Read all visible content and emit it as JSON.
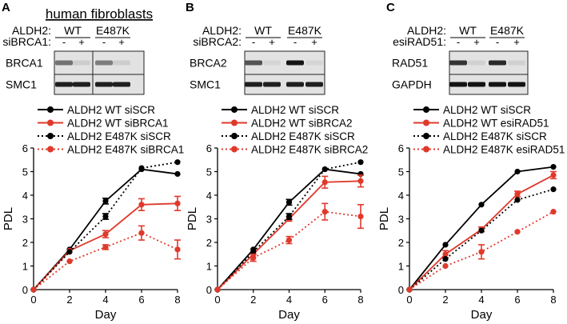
{
  "panels": [
    {
      "letter": "A",
      "header": "human fibroblasts",
      "genotype_label": "ALDH2:",
      "genotypes": [
        "WT",
        "E487K"
      ],
      "treatment_label": "siBRCA1:",
      "lanes": [
        "-",
        "+",
        "-",
        "+"
      ],
      "blots": [
        {
          "label": "BRCA1",
          "intensities": [
            0.55,
            0.12,
            0.5,
            0.12
          ],
          "split_after_lane": 2
        },
        {
          "label": "SMC1",
          "intensities": [
            0.95,
            0.95,
            0.95,
            0.95
          ],
          "split_after_lane": 2
        }
      ]
    },
    {
      "letter": "B",
      "header": "",
      "genotype_label": "ALDH2:",
      "genotypes": [
        "WT",
        "E487K"
      ],
      "treatment_label": "siBRCA2:",
      "lanes": [
        "-",
        "+",
        "-",
        "+"
      ],
      "blots": [
        {
          "label": "BRCA2",
          "intensities": [
            0.7,
            0.08,
            1.0,
            0.08
          ]
        },
        {
          "label": "SMC1",
          "intensities": [
            0.95,
            0.95,
            0.95,
            0.95
          ]
        }
      ]
    },
    {
      "letter": "C",
      "header": "",
      "genotype_label": "ALDH2:",
      "genotypes": [
        "WT",
        "E487K"
      ],
      "treatment_label": "esiRAD51:",
      "lanes": [
        "-",
        "+",
        "-",
        "+"
      ],
      "blots": [
        {
          "label": "RAD51",
          "intensities": [
            0.85,
            0.1,
            0.9,
            0.1
          ]
        },
        {
          "label": "GAPDH",
          "intensities": [
            1.0,
            1.0,
            1.0,
            1.0
          ]
        }
      ]
    }
  ],
  "colors": {
    "black": "#000000",
    "red": "#e0392b"
  },
  "chart_data": [
    {
      "type": "line",
      "xlabel": "Day",
      "ylabel": "PDL",
      "xlim": [
        0,
        8
      ],
      "ylim": [
        0,
        6
      ],
      "xticks": [
        0,
        2,
        4,
        6,
        8
      ],
      "yticks": [
        0,
        1,
        2,
        3,
        4,
        5,
        6
      ],
      "legend_position": "top",
      "series": [
        {
          "name": "ALDH2 WT siSCR",
          "color": "#000000",
          "dash": false,
          "x": [
            0,
            2,
            4,
            6,
            8
          ],
          "y": [
            0,
            1.7,
            3.75,
            5.1,
            4.9
          ],
          "err": [
            0,
            0,
            0.12,
            0,
            0
          ]
        },
        {
          "name": "ALDH2 WT siBRCA1",
          "color": "#e0392b",
          "dash": false,
          "x": [
            0,
            2,
            4,
            6,
            8
          ],
          "y": [
            0,
            1.65,
            2.35,
            3.6,
            3.65
          ],
          "err": [
            0,
            0,
            0.15,
            0.25,
            0.3
          ]
        },
        {
          "name": "ALDH2 E487K siSCR",
          "color": "#000000",
          "dash": true,
          "x": [
            0,
            2,
            4,
            6,
            8
          ],
          "y": [
            0,
            1.6,
            3.1,
            5.15,
            5.4
          ],
          "err": [
            0,
            0,
            0.12,
            0,
            0
          ]
        },
        {
          "name": "ALDH2 E487K siBRCA1",
          "color": "#e0392b",
          "dash": true,
          "x": [
            0,
            2,
            4,
            6,
            8
          ],
          "y": [
            0,
            1.2,
            1.8,
            2.4,
            1.7
          ],
          "err": [
            0,
            0,
            0.1,
            0.3,
            0.4
          ]
        }
      ]
    },
    {
      "type": "line",
      "xlabel": "Day",
      "ylabel": "PDL",
      "xlim": [
        0,
        8
      ],
      "ylim": [
        0,
        6
      ],
      "xticks": [
        0,
        2,
        4,
        6,
        8
      ],
      "yticks": [
        0,
        1,
        2,
        3,
        4,
        5,
        6
      ],
      "legend_position": "top",
      "series": [
        {
          "name": "ALDH2 WT siSCR",
          "color": "#000000",
          "dash": false,
          "x": [
            0,
            2,
            4,
            6,
            8
          ],
          "y": [
            0,
            1.7,
            3.7,
            5.1,
            4.9
          ],
          "err": [
            0,
            0,
            0.12,
            0,
            0
          ]
        },
        {
          "name": "ALDH2 WT siBRCA2",
          "color": "#e0392b",
          "dash": false,
          "x": [
            0,
            2,
            4,
            6,
            8
          ],
          "y": [
            0,
            1.5,
            3.0,
            4.55,
            4.6
          ],
          "err": [
            0,
            0,
            0.1,
            0.25,
            0.25
          ]
        },
        {
          "name": "ALDH2 E487K siSCR",
          "color": "#000000",
          "dash": true,
          "x": [
            0,
            2,
            4,
            6,
            8
          ],
          "y": [
            0,
            1.6,
            3.1,
            5.1,
            5.4
          ],
          "err": [
            0,
            0,
            0.12,
            0,
            0
          ]
        },
        {
          "name": "ALDH2 E487K siBRCA2",
          "color": "#e0392b",
          "dash": true,
          "x": [
            0,
            2,
            4,
            6,
            8
          ],
          "y": [
            0,
            1.35,
            2.1,
            3.3,
            3.1
          ],
          "err": [
            0,
            0.15,
            0.15,
            0.35,
            0.5
          ]
        }
      ]
    },
    {
      "type": "line",
      "xlabel": "Day",
      "ylabel": "PDL",
      "xlim": [
        0,
        8
      ],
      "ylim": [
        0,
        6
      ],
      "xticks": [
        0,
        2,
        4,
        6,
        8
      ],
      "yticks": [
        0,
        1,
        2,
        3,
        4,
        5,
        6
      ],
      "legend_position": "top",
      "series": [
        {
          "name": "ALDH2 WT siSCR",
          "color": "#000000",
          "dash": false,
          "x": [
            0,
            2,
            4,
            6,
            8
          ],
          "y": [
            0,
            1.9,
            3.6,
            5.0,
            5.2
          ],
          "err": [
            0,
            0,
            0,
            0,
            0
          ]
        },
        {
          "name": "ALDH2 WT esiRAD51",
          "color": "#e0392b",
          "dash": false,
          "x": [
            0,
            2,
            4,
            6,
            8
          ],
          "y": [
            0,
            1.5,
            2.55,
            4.05,
            4.85
          ],
          "err": [
            0,
            0.15,
            0.1,
            0.12,
            0.15
          ]
        },
        {
          "name": "ALDH2 E487K siSCR",
          "color": "#000000",
          "dash": true,
          "x": [
            0,
            2,
            4,
            6,
            8
          ],
          "y": [
            0,
            1.3,
            2.5,
            3.8,
            4.25
          ],
          "err": [
            0,
            0,
            0,
            0,
            0
          ]
        },
        {
          "name": "ALDH2 E487K esiRAD51",
          "color": "#e0392b",
          "dash": true,
          "x": [
            0,
            2,
            4,
            6,
            8
          ],
          "y": [
            0,
            1.0,
            1.6,
            2.45,
            3.3
          ],
          "err": [
            0,
            0,
            0.3,
            0,
            0
          ]
        }
      ]
    }
  ]
}
